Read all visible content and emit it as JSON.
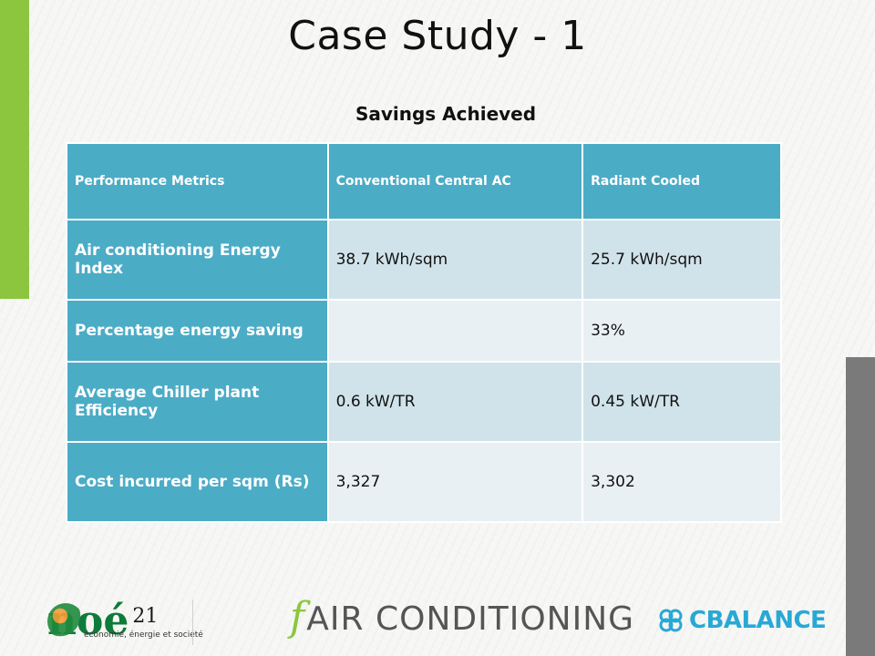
{
  "slide": {
    "title": "Case Study - 1",
    "subtitle": "Savings Achieved"
  },
  "table": {
    "headers": [
      "Performance Metrics",
      "Conventional  Central AC",
      "Radiant Cooled"
    ],
    "rows": [
      {
        "label": "Air conditioning Energy Index",
        "conventional": "38.7 kWh/sqm",
        "radiant": "25.7 kWh/sqm"
      },
      {
        "label": "Percentage energy saving",
        "conventional": "",
        "radiant": "33%"
      },
      {
        "label": "Average Chiller plant Efficiency",
        "conventional": "0.6 kW/TR",
        "radiant": "0.45 kW/TR"
      },
      {
        "label": "Cost incurred per sqm (Rs)",
        "conventional": "3,327",
        "radiant": "3,302"
      }
    ]
  },
  "footer": {
    "noe_logo_text": "noé",
    "noe_logo_number": "21",
    "noe_tagline": "économie, énergie et société",
    "fair_logo_f": "f",
    "fair_logo_text": "AIR CONDITIONING",
    "cbalance_text": "CBALANCE"
  },
  "colors": {
    "header_blue": "#4bacc6",
    "row_light_a": "#d0e3ea",
    "row_light_b": "#e8f0f3",
    "accent_green": "#8cc63f",
    "accent_gray": "#7a7a7a",
    "cbalance_blue": "#29a8d6"
  }
}
